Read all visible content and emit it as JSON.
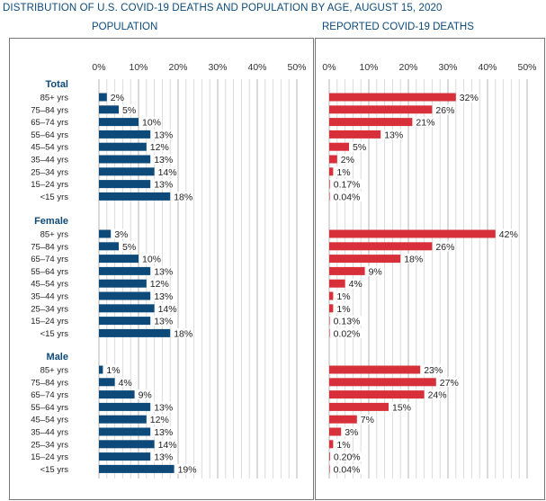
{
  "title": "DISTRIBUTION OF U.S. COVID-19 DEATHS AND POPULATION BY AGE, AUGUST 15, 2020",
  "chart_data": {
    "type": "bar",
    "orientation": "horizontal",
    "panels": [
      {
        "key": "population",
        "header": "POPULATION",
        "color": "#0d4a7a"
      },
      {
        "key": "deaths",
        "header": "REPORTED COVID-19 DEATHS",
        "color": "#d7303a"
      }
    ],
    "xticks": [
      "0%",
      "10%",
      "20%",
      "30%",
      "40%",
      "50%"
    ],
    "xlim": [
      0,
      50
    ],
    "grid": true,
    "age_groups": [
      "85+ yrs",
      "75–84 yrs",
      "65–74 yrs",
      "55–64 yrs",
      "45–54 yrs",
      "35–44 yrs",
      "25–34 yrs",
      "15–24 yrs",
      "<15 yrs"
    ],
    "groups": [
      {
        "name": "Total",
        "population": [
          2,
          5,
          10,
          13,
          12,
          13,
          14,
          13,
          18
        ],
        "population_labels": [
          "2%",
          "5%",
          "10%",
          "13%",
          "12%",
          "13%",
          "14%",
          "13%",
          "18%"
        ],
        "deaths": [
          32,
          26,
          21,
          13,
          5,
          2,
          1,
          0.17,
          0.04
        ],
        "deaths_labels": [
          "32%",
          "26%",
          "21%",
          "13%",
          "5%",
          "2%",
          "1%",
          "0.17%",
          "0.04%"
        ]
      },
      {
        "name": "Female",
        "population": [
          3,
          5,
          10,
          13,
          12,
          13,
          14,
          13,
          18
        ],
        "population_labels": [
          "3%",
          "5%",
          "10%",
          "13%",
          "12%",
          "13%",
          "14%",
          "13%",
          "18%"
        ],
        "deaths": [
          42,
          26,
          18,
          9,
          4,
          1,
          1,
          0.13,
          0.02
        ],
        "deaths_labels": [
          "42%",
          "26%",
          "18%",
          "9%",
          "4%",
          "1%",
          "1%",
          "0.13%",
          "0.02%"
        ]
      },
      {
        "name": "Male",
        "population": [
          1,
          4,
          9,
          13,
          12,
          13,
          14,
          13,
          19
        ],
        "population_labels": [
          "1%",
          "4%",
          "9%",
          "13%",
          "12%",
          "13%",
          "14%",
          "13%",
          "19%"
        ],
        "deaths": [
          23,
          27,
          24,
          15,
          7,
          3,
          1,
          0.2,
          0.04
        ],
        "deaths_labels": [
          "23%",
          "27%",
          "24%",
          "15%",
          "7%",
          "3%",
          "1%",
          "0.20%",
          "0.04%"
        ]
      }
    ]
  }
}
